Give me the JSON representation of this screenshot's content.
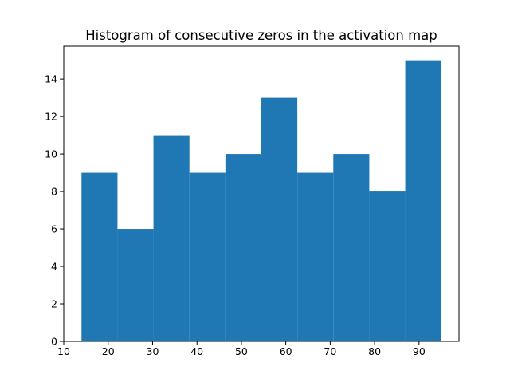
{
  "chart_data": {
    "type": "bar",
    "title": "Histogram of consecutive zeros in the activation map",
    "xlabel": "",
    "ylabel": "",
    "bin_edges": [
      14,
      22.1,
      30.2,
      38.3,
      46.4,
      54.5,
      62.6,
      70.7,
      78.8,
      86.9,
      95
    ],
    "values": [
      9,
      6,
      11,
      9,
      10,
      13,
      9,
      10,
      8,
      15
    ],
    "xlim": [
      10,
      99
    ],
    "ylim": [
      0,
      15.75
    ],
    "xticks": [
      10,
      20,
      30,
      40,
      50,
      60,
      70,
      80,
      90
    ],
    "yticks": [
      0,
      2,
      4,
      6,
      8,
      10,
      12,
      14
    ],
    "grid": false,
    "bar_color": "#1f77b4"
  }
}
